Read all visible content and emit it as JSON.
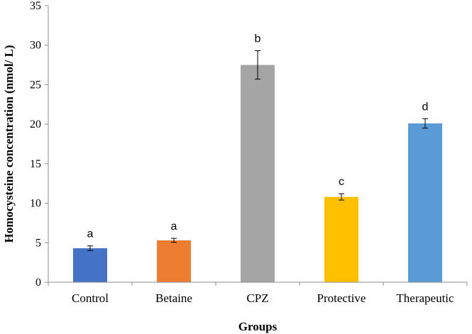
{
  "chart_data": {
    "type": "bar",
    "title": "",
    "xlabel": "Groups",
    "ylabel": "Homocysteine concentration (nmol/ L)",
    "ylim": [
      0,
      35
    ],
    "yticks": [
      0,
      5,
      10,
      15,
      20,
      25,
      30,
      35
    ],
    "grid": false,
    "legend": "none",
    "categories": [
      "Control",
      "Betaine",
      "CPZ",
      "Protective",
      "Therapeutic"
    ],
    "values": [
      4.3,
      5.3,
      27.5,
      10.8,
      20.1
    ],
    "errors": [
      0.3,
      0.25,
      1.8,
      0.4,
      0.6
    ],
    "significance_labels": [
      "a",
      "a",
      "b",
      "c",
      "d"
    ],
    "colors": [
      "#4472C4",
      "#ED7D31",
      "#A5A5A5",
      "#FFC000",
      "#5B9BD5"
    ]
  }
}
